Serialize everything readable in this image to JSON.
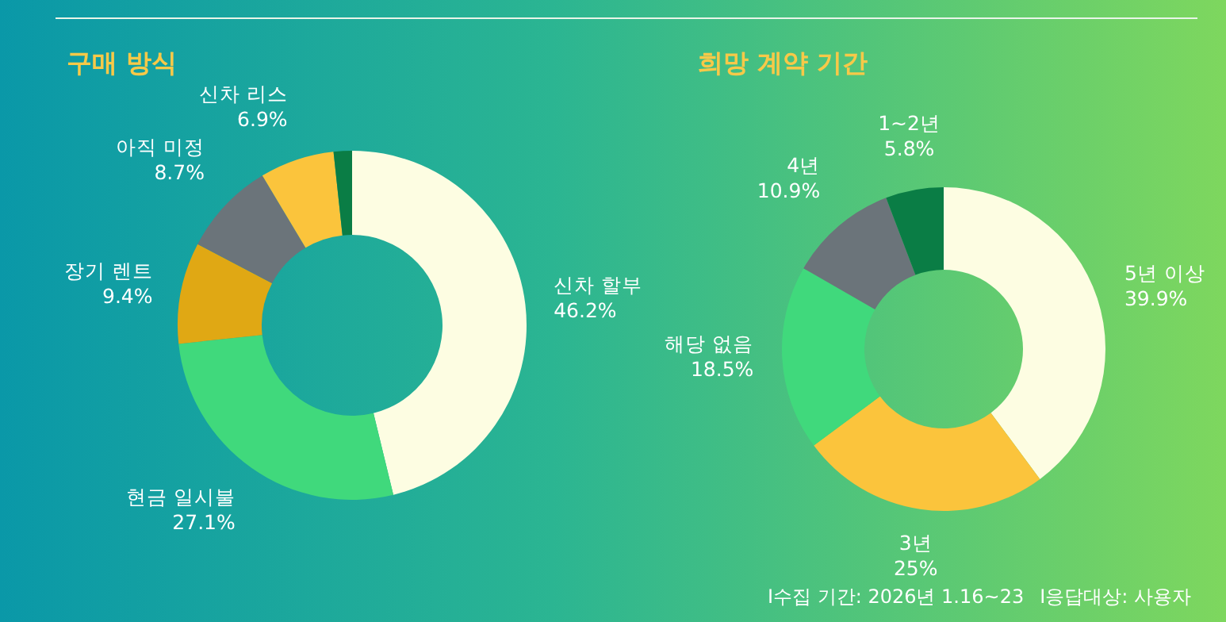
{
  "chart_data": [
    {
      "type": "donut",
      "title": "구매 방식",
      "categories": [
        "신차 할부",
        "현금 일시불",
        "장기 렌트",
        "아직 미정",
        "신차 리스",
        null
      ],
      "values": [
        46.2,
        27.1,
        9.4,
        8.7,
        6.9,
        1.7
      ],
      "value_labels": [
        "46.2%",
        "27.1%",
        "9.4%",
        "8.7%",
        "6.9%",
        null
      ],
      "colors": [
        "#fdfde2",
        "#40d97c",
        "#e0a814",
        "#6b747a",
        "#fbc43c",
        "#0a7d45"
      ]
    },
    {
      "type": "donut",
      "title": "희망 계약 기간",
      "categories": [
        "5년 이상",
        "3년",
        "해당 없음",
        "4년",
        "1~2년"
      ],
      "values": [
        39.9,
        25,
        18.5,
        10.9,
        5.8
      ],
      "value_labels": [
        "39.9%",
        "25%",
        "18.5%",
        "10.9%",
        "5.8%"
      ],
      "colors": [
        "#fdfde2",
        "#fbc43c",
        "#40d97c",
        "#6b747a",
        "#0a7d45"
      ],
      "annotations": [
        "I수집 기간: 2026년 1.16~23",
        "I응답대상: 사용자"
      ]
    }
  ]
}
